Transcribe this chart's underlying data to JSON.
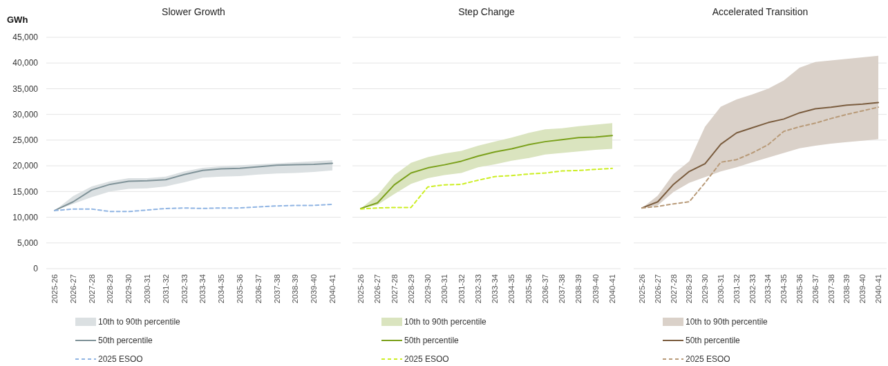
{
  "chart_data": [
    {
      "type": "line",
      "title": "Slower Growth",
      "ylabel": "GWh",
      "categories": [
        "2025-26",
        "2026-27",
        "2027-28",
        "2028-29",
        "2029-30",
        "2030-31",
        "2031-32",
        "2032-33",
        "2033-34",
        "2034-35",
        "2035-36",
        "2036-37",
        "2037-38",
        "2038-39",
        "2039-40",
        "2040-41"
      ],
      "ylim": [
        0,
        45000
      ],
      "yticks": [
        {
          "value": 0,
          "label": "0"
        },
        {
          "value": 5000,
          "label": "5,000"
        },
        {
          "value": 10000,
          "label": "10,000"
        },
        {
          "value": 15000,
          "label": "15,000"
        },
        {
          "value": 20000,
          "label": "20,000"
        },
        {
          "value": 25000,
          "label": "25,000"
        },
        {
          "value": 30000,
          "label": "30,000"
        },
        {
          "value": 35000,
          "label": "35,000"
        },
        {
          "value": 40000,
          "label": "40,000"
        },
        {
          "value": 45000,
          "label": "45,000"
        }
      ],
      "grid": "y",
      "legend": "bottom",
      "annotations": [
        "10th to 90th percentile"
      ],
      "series": [
        {
          "type": "line",
          "name": "50th percentile",
          "color": "#7f9298",
          "line_style": "solid",
          "values": [
            11300,
            13000,
            15300,
            16400,
            17000,
            17100,
            17300,
            18300,
            19100,
            19400,
            19500,
            19800,
            20100,
            20200,
            20300,
            20500
          ],
          "lower": [
            11300,
            12600,
            13900,
            15000,
            15500,
            15600,
            16000,
            16800,
            17700,
            17900,
            18000,
            18300,
            18500,
            18600,
            18800,
            19100
          ],
          "upper": [
            11300,
            14100,
            16000,
            17000,
            17600,
            17600,
            17900,
            18900,
            19600,
            19900,
            20100,
            20300,
            20500,
            20700,
            20900,
            21100
          ]
        },
        {
          "type": "line",
          "name": "2025 ESOO",
          "color": "#8fb4e3",
          "line_style": "dashed",
          "values": [
            11300,
            11600,
            11600,
            11100,
            11100,
            11400,
            11700,
            11800,
            11700,
            11800,
            11800,
            12000,
            12200,
            12300,
            12300,
            12500
          ]
        }
      ]
    },
    {
      "type": "line",
      "title": "Step Change",
      "categories": [
        "2025-26",
        "2026-27",
        "2027-28",
        "2028-29",
        "2029-30",
        "2030-31",
        "2031-32",
        "2032-33",
        "2033-34",
        "2034-35",
        "2035-36",
        "2036-37",
        "2037-38",
        "2038-39",
        "2039-40",
        "2040-41"
      ],
      "ylim": [
        0,
        45000
      ],
      "yticks": [
        0,
        5000,
        10000,
        15000,
        20000,
        25000,
        30000,
        35000,
        40000,
        45000
      ],
      "tick_labels": "x",
      "grid": "y",
      "legend": "bottom",
      "annotations": [
        "10th to 90th percentile"
      ],
      "series": [
        {
          "type": "line",
          "name": "50th percentile",
          "color": "#7aa01a",
          "line_style": "solid",
          "values": [
            11700,
            12800,
            16300,
            18600,
            19600,
            20200,
            20900,
            21900,
            22700,
            23300,
            24100,
            24700,
            25100,
            25500,
            25600,
            25900
          ],
          "lower": [
            11700,
            12400,
            14500,
            16500,
            17600,
            18200,
            18600,
            19700,
            20300,
            21000,
            21500,
            22200,
            22500,
            22800,
            23100,
            23300
          ],
          "upper": [
            11700,
            14300,
            18200,
            20600,
            21700,
            22400,
            22900,
            23900,
            24700,
            25500,
            26400,
            27100,
            27300,
            27700,
            28000,
            28300
          ]
        },
        {
          "type": "line",
          "name": "2025 ESOO",
          "color": "#ccee22",
          "line_style": "dashed",
          "values": [
            11600,
            11800,
            11900,
            11900,
            15900,
            16300,
            16400,
            17200,
            17900,
            18100,
            18400,
            18600,
            19000,
            19100,
            19300,
            19500
          ]
        }
      ]
    },
    {
      "type": "line",
      "title": "Accelerated Transition",
      "categories": [
        "2025-26",
        "2026-27",
        "2027-28",
        "2028-29",
        "2029-30",
        "2030-31",
        "2031-32",
        "2032-33",
        "2033-34",
        "2034-35",
        "2035-36",
        "2036-37",
        "2037-38",
        "2038-39",
        "2039-40",
        "2040-41"
      ],
      "ylim": [
        0,
        45000
      ],
      "yticks": [
        0,
        5000,
        10000,
        15000,
        20000,
        25000,
        30000,
        35000,
        40000,
        45000
      ],
      "tick_labels": "x",
      "grid": "y",
      "legend": "bottom",
      "annotations": [
        "10th to 90th percentile"
      ],
      "series": [
        {
          "type": "line",
          "name": "50th percentile",
          "color": "#7a5c3e",
          "line_style": "solid",
          "values": [
            11800,
            13000,
            16400,
            18900,
            20400,
            24200,
            26400,
            27400,
            28400,
            29100,
            30300,
            31100,
            31400,
            31800,
            32000,
            32300
          ],
          "lower": [
            11800,
            12300,
            14900,
            16700,
            17800,
            18900,
            19700,
            20700,
            21600,
            22500,
            23400,
            23900,
            24300,
            24600,
            24900,
            25200
          ],
          "upper": [
            11800,
            14200,
            18400,
            20900,
            27600,
            31500,
            32900,
            33900,
            35000,
            36600,
            39100,
            40200,
            40500,
            40800,
            41100,
            41400
          ]
        },
        {
          "type": "line",
          "name": "2025 ESOO",
          "color": "#b89a78",
          "line_style": "dashed",
          "values": [
            11800,
            12100,
            12600,
            13000,
            16700,
            20700,
            21200,
            22500,
            24100,
            26700,
            27600,
            28300,
            29200,
            30000,
            30700,
            31400
          ]
        }
      ]
    }
  ]
}
